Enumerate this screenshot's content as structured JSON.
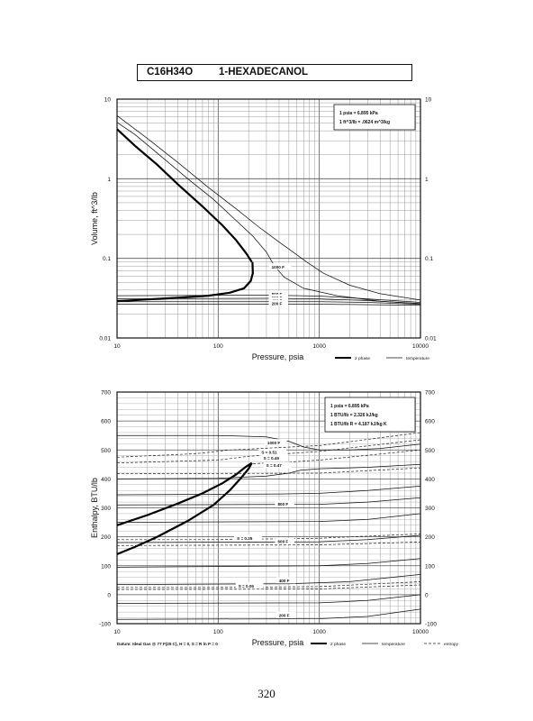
{
  "header": {
    "formula": "C16H34O",
    "name": "1-HEXADECANOL"
  },
  "page_number": "320",
  "chart_data": [
    {
      "type": "line",
      "id": "volume",
      "xscale": "log",
      "yscale": "log",
      "xlim": [
        10,
        10000
      ],
      "ylim": [
        0.01,
        10
      ],
      "xlabel": "Pressure,  psia",
      "ylabel": "Volume, ft^3/lb",
      "xticks": [
        {
          "v": 10,
          "label": "10"
        },
        {
          "v": 100,
          "label": "100"
        },
        {
          "v": 1000,
          "label": "1000"
        },
        {
          "v": 10000,
          "label": "10000"
        }
      ],
      "yticks": [
        {
          "v": 0.01,
          "label": "0.01"
        },
        {
          "v": 0.1,
          "label": "0.1"
        },
        {
          "v": 1,
          "label": "1"
        },
        {
          "v": 10,
          "label": "10"
        }
      ],
      "conversion_box": [
        "1 psia = 6.895 kPa",
        "1 ft^3/lb = .0624 m^3/kg"
      ],
      "legend": [
        {
          "label": "2 phase",
          "style": "thick"
        },
        {
          "label": "temperature",
          "style": "thin"
        }
      ],
      "series": [
        {
          "kind": "two_phase_vapor",
          "points": [
            [
              10,
              4.2
            ],
            [
              15,
              2.6
            ],
            [
              25,
              1.5
            ],
            [
              40,
              0.85
            ],
            [
              70,
              0.45
            ],
            [
              110,
              0.26
            ],
            [
              150,
              0.17
            ],
            [
              190,
              0.115
            ],
            [
              215,
              0.09
            ]
          ]
        },
        {
          "kind": "two_phase_liquid",
          "points": [
            [
              10,
              0.029
            ],
            [
              20,
              0.0305
            ],
            [
              40,
              0.032
            ],
            [
              80,
              0.034
            ],
            [
              130,
              0.037
            ],
            [
              180,
              0.042
            ],
            [
              210,
              0.052
            ],
            [
              220,
              0.065
            ],
            [
              218,
              0.09
            ]
          ]
        },
        {
          "kind": "isotherm",
          "label": "",
          "points": [
            [
              10,
              5.1
            ],
            [
              15,
              3.6
            ],
            [
              25,
              2.1
            ],
            [
              50,
              1.0
            ],
            [
              90,
              0.55
            ],
            [
              150,
              0.3
            ],
            [
              220,
              0.19
            ],
            [
              300,
              0.12
            ],
            [
              360,
              0.08
            ],
            [
              450,
              0.058
            ],
            [
              700,
              0.042
            ],
            [
              1500,
              0.034
            ],
            [
              4000,
              0.029
            ],
            [
              10000,
              0.027
            ]
          ]
        },
        {
          "kind": "isotherm",
          "label": "1000 F",
          "points": [
            [
              10,
              6.2
            ],
            [
              20,
              3.2
            ],
            [
              40,
              1.6
            ],
            [
              80,
              0.78
            ],
            [
              150,
              0.42
            ],
            [
              250,
              0.25
            ],
            [
              400,
              0.16
            ],
            [
              550,
              0.12
            ],
            [
              750,
              0.09
            ],
            [
              1100,
              0.065
            ],
            [
              2000,
              0.046
            ],
            [
              4000,
              0.036
            ],
            [
              10000,
              0.03
            ]
          ]
        },
        {
          "kind": "isotherm",
          "label": "800 F",
          "points": [
            [
              10,
              0.034
            ],
            [
              300,
              0.0345
            ],
            [
              1000,
              0.0336
            ],
            [
              3000,
              0.031
            ],
            [
              10000,
              0.028
            ]
          ]
        },
        {
          "kind": "isotherm",
          "label": "600 F",
          "points": [
            [
              10,
              0.031
            ],
            [
              300,
              0.0315
            ],
            [
              1000,
              0.031
            ],
            [
              3000,
              0.0295
            ],
            [
              10000,
              0.027
            ]
          ]
        },
        {
          "kind": "isotherm",
          "label": "400 F",
          "points": [
            [
              10,
              0.0285
            ],
            [
              1000,
              0.0285
            ],
            [
              3000,
              0.028
            ],
            [
              10000,
              0.0265
            ]
          ]
        },
        {
          "kind": "isotherm",
          "label": "200 F",
          "points": [
            [
              10,
              0.0265
            ],
            [
              1000,
              0.0266
            ],
            [
              10000,
              0.0257
            ]
          ]
        }
      ]
    },
    {
      "type": "line",
      "id": "enthalpy",
      "xscale": "log",
      "yscale": "linear",
      "xlim": [
        10,
        10000
      ],
      "ylim": [
        -100,
        700
      ],
      "xlabel": "Pressure,  psia",
      "ylabel": "Enthalpy, BTU/lb",
      "xticks": [
        {
          "v": 10,
          "label": "10"
        },
        {
          "v": 100,
          "label": "100"
        },
        {
          "v": 1000,
          "label": "1000"
        },
        {
          "v": 10000,
          "label": "10000"
        }
      ],
      "yticks": [
        {
          "v": -100,
          "label": "-100"
        },
        {
          "v": 0,
          "label": "0"
        },
        {
          "v": 100,
          "label": "100"
        },
        {
          "v": 200,
          "label": "200"
        },
        {
          "v": 300,
          "label": "300"
        },
        {
          "v": 400,
          "label": "400"
        },
        {
          "v": 500,
          "label": "500"
        },
        {
          "v": 600,
          "label": "600"
        },
        {
          "v": 700,
          "label": "700"
        }
      ],
      "conversion_box": [
        "1 psia = 6.895 kPa",
        "1 BTU/lb = 2.326 kJ/kg",
        "1 BTU/lb R = 4.187 kJ/kg K"
      ],
      "datum_note": "Datum: Ideal Gas @ 77 F(25 C), H = 0, S = R ln P = 0",
      "legend": [
        {
          "label": "2 phase",
          "style": "thick"
        },
        {
          "label": "temperature",
          "style": "thin"
        },
        {
          "label": "entropy",
          "style": "dashed"
        }
      ],
      "series": [
        {
          "kind": "two_phase_vapor",
          "points": [
            [
              10,
              240
            ],
            [
              20,
              275
            ],
            [
              40,
              315
            ],
            [
              70,
              350
            ],
            [
              110,
              385
            ],
            [
              150,
              415
            ],
            [
              185,
              440
            ],
            [
              215,
              455
            ]
          ]
        },
        {
          "kind": "two_phase_liquid",
          "points": [
            [
              10,
              140
            ],
            [
              15,
              165
            ],
            [
              25,
              200
            ],
            [
              50,
              255
            ],
            [
              90,
              310
            ],
            [
              130,
              360
            ],
            [
              170,
              405
            ],
            [
              200,
              435
            ],
            [
              215,
              455
            ]
          ]
        },
        {
          "kind": "isotherm",
          "label": "1000 F",
          "points": [
            [
              10,
              550
            ],
            [
              100,
              550
            ],
            [
              300,
              545
            ],
            [
              500,
              530
            ],
            [
              700,
              510
            ],
            [
              1000,
              500
            ],
            [
              2000,
              500
            ],
            [
              4000,
              505
            ],
            [
              10000,
              520
            ]
          ]
        },
        {
          "kind": "isotherm",
          "label": "",
          "points": [
            [
              10,
              400
            ],
            [
              100,
              402
            ],
            [
              300,
              410
            ],
            [
              500,
              420
            ],
            [
              650,
              430
            ],
            [
              1000,
              435
            ],
            [
              3000,
              440
            ],
            [
              10000,
              450
            ]
          ]
        },
        {
          "kind": "isotherm",
          "label": "",
          "points": [
            [
              10,
              345
            ],
            [
              400,
              348
            ],
            [
              1000,
              350
            ],
            [
              3000,
              360
            ],
            [
              10000,
              375
            ]
          ]
        },
        {
          "kind": "isotherm",
          "label": "800 F",
          "points": [
            [
              10,
              310
            ],
            [
              1000,
              312
            ],
            [
              3000,
              320
            ],
            [
              10000,
              335
            ]
          ]
        },
        {
          "kind": "isotherm",
          "label": "",
          "points": [
            [
              10,
              250
            ],
            [
              1000,
              253
            ],
            [
              3000,
              260
            ],
            [
              10000,
              280
            ]
          ]
        },
        {
          "kind": "isotherm",
          "label": "600 F",
          "points": [
            [
              10,
              180
            ],
            [
              1000,
              183
            ],
            [
              3000,
              190
            ],
            [
              10000,
              205
            ]
          ]
        },
        {
          "kind": "isotherm",
          "label": "",
          "points": [
            [
              10,
              95
            ],
            [
              1000,
              100
            ],
            [
              3000,
              108
            ],
            [
              10000,
              125
            ]
          ]
        },
        {
          "kind": "isotherm",
          "label": "400 F",
          "points": [
            [
              10,
              35
            ],
            [
              500,
              38
            ],
            [
              2000,
              45
            ],
            [
              10000,
              70
            ]
          ]
        },
        {
          "kind": "isotherm",
          "label": "",
          "points": [
            [
              10,
              -30
            ],
            [
              1000,
              -28
            ],
            [
              3000,
              -20
            ],
            [
              10000,
              0
            ]
          ]
        },
        {
          "kind": "isotherm",
          "label": "200 F",
          "points": [
            [
              10,
              -85
            ],
            [
              1000,
              -83
            ],
            [
              3000,
              -75
            ],
            [
              10000,
              -50
            ]
          ]
        },
        {
          "kind": "entropy",
          "label": "S = 0.51",
          "points": [
            [
              10,
              475
            ],
            [
              60,
              487
            ],
            [
              130,
              500
            ],
            [
              1000,
              515
            ],
            [
              10000,
              560
            ]
          ]
        },
        {
          "kind": "entropy",
          "label": "S = 0.49",
          "points": [
            [
              10,
              455
            ],
            [
              100,
              465
            ],
            [
              200,
              478
            ],
            [
              1000,
              495
            ],
            [
              10000,
              535
            ]
          ]
        },
        {
          "kind": "entropy",
          "label": "S = 0.47",
          "points": [
            [
              200,
              452
            ],
            [
              500,
              458
            ],
            [
              1000,
              465
            ],
            [
              10000,
              500
            ]
          ]
        },
        {
          "kind": "entropy",
          "label": "",
          "points": [
            [
              10,
              418
            ],
            [
              1000,
              420
            ],
            [
              10000,
              438
            ]
          ]
        },
        {
          "kind": "entropy",
          "label": "S = 0.25",
          "points": [
            [
              10,
              190
            ],
            [
              100,
              190
            ],
            [
              1000,
              195
            ],
            [
              10000,
              210
            ]
          ]
        },
        {
          "kind": "entropy",
          "label": "",
          "points": [
            [
              10,
              170
            ],
            [
              1000,
              172
            ],
            [
              10000,
              182
            ]
          ]
        },
        {
          "kind": "entropy",
          "label": "S = 0.05",
          "points": [
            [
              10,
              25
            ],
            [
              100,
              25
            ],
            [
              1000,
              28
            ],
            [
              10000,
              45
            ]
          ]
        },
        {
          "kind": "entropy",
          "label": "",
          "points": [
            [
              10,
              18
            ],
            [
              1000,
              20
            ],
            [
              10000,
              34
            ]
          ]
        }
      ]
    }
  ]
}
